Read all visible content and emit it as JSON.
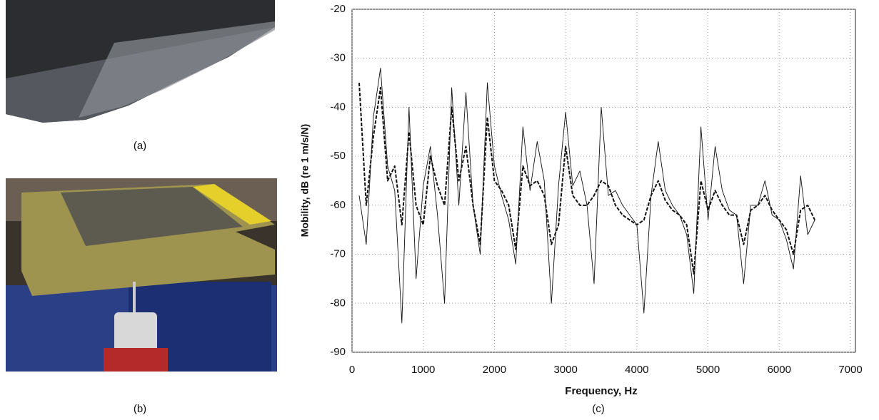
{
  "panel_labels": [
    "(a)",
    "(b)"
  ],
  "chart_data": {
    "type": "line",
    "panel_label": "(c)",
    "xlabel": "Frequency, Hz",
    "ylabel": "Mobility, dB (re 1 m/s/N)",
    "xlim": [
      0,
      7000
    ],
    "xticks": [
      0,
      1000,
      2000,
      3000,
      4000,
      5000,
      6000,
      7000
    ],
    "ylim": [
      -90,
      -20
    ],
    "yticks": [
      -90,
      -80,
      -70,
      -60,
      -50,
      -40,
      -30,
      -20
    ],
    "grid": true,
    "x": [
      100,
      200,
      300,
      400,
      500,
      600,
      700,
      800,
      900,
      1000,
      1100,
      1200,
      1300,
      1400,
      1500,
      1600,
      1700,
      1800,
      1900,
      2000,
      2100,
      2200,
      2300,
      2400,
      2500,
      2600,
      2700,
      2800,
      2900,
      3000,
      3100,
      3200,
      3300,
      3400,
      3500,
      3600,
      3700,
      3800,
      3900,
      4000,
      4100,
      4200,
      4300,
      4400,
      4500,
      4600,
      4700,
      4800,
      4900,
      5000,
      5100,
      5200,
      5300,
      5400,
      5500,
      5600,
      5700,
      5800,
      5900,
      6000,
      6100,
      6200,
      6300,
      6400,
      6500
    ],
    "series": [
      {
        "color": "#111111",
        "style": "solid",
        "values": [
          -58,
          -68,
          -42,
          -32,
          -52,
          -57,
          -84,
          -40,
          -75,
          -56,
          -48,
          -62,
          -80,
          -36,
          -60,
          -37,
          -60,
          -70,
          -35,
          -52,
          -58,
          -63,
          -72,
          -44,
          -57,
          -47,
          -55,
          -80,
          -56,
          -41,
          -56,
          -53,
          -60,
          -76,
          -40,
          -58,
          -57,
          -60,
          -62,
          -64,
          -82,
          -58,
          -47,
          -57,
          -60,
          -62,
          -66,
          -78,
          -44,
          -63,
          -48,
          -57,
          -61,
          -62,
          -76,
          -60,
          -60,
          -55,
          -62,
          -63,
          -67,
          -73,
          -54,
          -66,
          -63
        ]
      },
      {
        "color": "#111111",
        "style": "dashed",
        "values": [
          -35,
          -60,
          -46,
          -36,
          -55,
          -52,
          -64,
          -45,
          -60,
          -64,
          -50,
          -56,
          -60,
          -40,
          -55,
          -48,
          -60,
          -68,
          -42,
          -55,
          -57,
          -60,
          -69,
          -52,
          -56,
          -55,
          -58,
          -68,
          -64,
          -48,
          -58,
          -60,
          -60,
          -58,
          -55,
          -56,
          -60,
          -62,
          -63,
          -64,
          -63,
          -58,
          -55,
          -59,
          -61,
          -62,
          -64,
          -74,
          -55,
          -61,
          -57,
          -60,
          -62,
          -62,
          -68,
          -61,
          -60,
          -58,
          -61,
          -63,
          -65,
          -70,
          -61,
          -60,
          -63
        ]
      }
    ]
  }
}
